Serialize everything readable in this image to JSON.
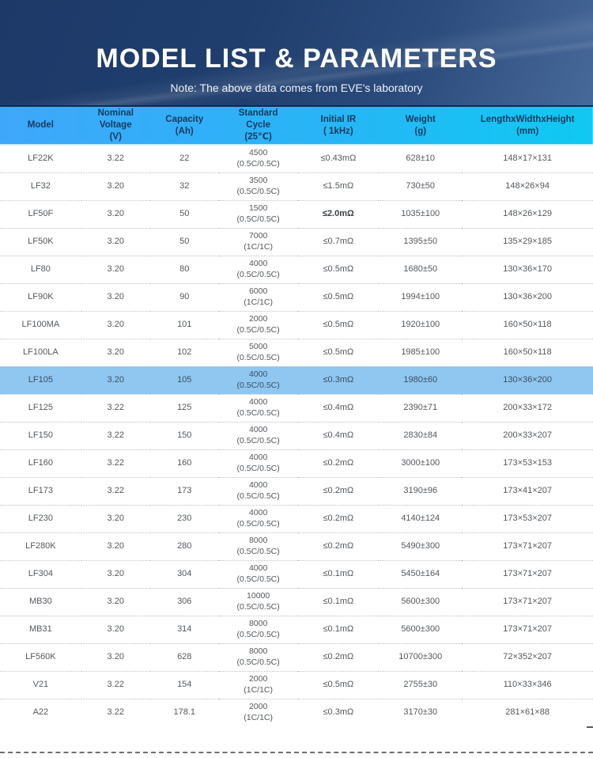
{
  "banner": {
    "title": "MODEL LIST & PARAMETERS",
    "note": "Note: The above data comes from EVE's laboratory"
  },
  "colors": {
    "banner_dark": "#1d3968",
    "banner_light": "#47699a",
    "header_gradient_start": "#3fa7fa",
    "header_gradient_end": "#0fc9f2",
    "header_text": "#173a5e",
    "body_text": "#54585c",
    "highlight_row": "#8fc7f0"
  },
  "table": {
    "headers": [
      "Model",
      "Nominal\nVoltage\n(V)",
      "Capacity\n(Ah)",
      "Standard\nCycle\n(25℃)",
      "Initial IR\n( 1kHz)",
      "Weight\n(g)",
      "LengthxWidthxHeight\n(mm)"
    ],
    "rows": [
      {
        "model": "LF22K",
        "voltage": "3.22",
        "capacity": "22",
        "cycle": "4500\n(0.5C/0.5C)",
        "initial_ir": "≤0.43mΩ",
        "weight": "628±10",
        "dimensions": "148×17×131"
      },
      {
        "model": "LF32",
        "voltage": "3.20",
        "capacity": "32",
        "cycle": "3500\n(0.5C/0.5C)",
        "initial_ir": "≤1.5mΩ",
        "weight": "730±50",
        "dimensions": "148×26×94"
      },
      {
        "model": "LF50F",
        "voltage": "3.20",
        "capacity": "50",
        "cycle": "1500\n(0.5C/0.5C)",
        "initial_ir": "≤2.0mΩ",
        "weight": "1035±100",
        "dimensions": "148×26×129",
        "ir_bold": true
      },
      {
        "model": "LF50K",
        "voltage": "3.20",
        "capacity": "50",
        "cycle": "7000\n(1C/1C)",
        "initial_ir": "≤0.7mΩ",
        "weight": "1395±50",
        "dimensions": "135×29×185"
      },
      {
        "model": "LF80",
        "voltage": "3.20",
        "capacity": "80",
        "cycle": "4000\n(0.5C/0.5C)",
        "initial_ir": "≤0.5mΩ",
        "weight": "1680±50",
        "dimensions": "130×36×170"
      },
      {
        "model": "LF90K",
        "voltage": "3.20",
        "capacity": "90",
        "cycle": "6000\n(1C/1C)",
        "initial_ir": "≤0.5mΩ",
        "weight": "1994±100",
        "dimensions": "130×36×200"
      },
      {
        "model": "LF100MA",
        "voltage": "3.20",
        "capacity": "101",
        "cycle": "2000\n(0.5C/0.5C)",
        "initial_ir": "≤0.5mΩ",
        "weight": "1920±100",
        "dimensions": "160×50×118"
      },
      {
        "model": "LF100LA",
        "voltage": "3.20",
        "capacity": "102",
        "cycle": "5000\n(0.5C/0.5C)",
        "initial_ir": "≤0.5mΩ",
        "weight": "1985±100",
        "dimensions": "160×50×118"
      },
      {
        "model": "LF105",
        "voltage": "3.20",
        "capacity": "105",
        "cycle": "4000\n(0.5C/0.5C)",
        "initial_ir": "≤0.3mΩ",
        "weight": "1980±60",
        "dimensions": "130×36×200",
        "highlight": true
      },
      {
        "model": "LF125",
        "voltage": "3.22",
        "capacity": "125",
        "cycle": "4000\n(0.5C/0.5C)",
        "initial_ir": "≤0.4mΩ",
        "weight": "2390±71",
        "dimensions": "200×33×172"
      },
      {
        "model": "LF150",
        "voltage": "3.22",
        "capacity": "150",
        "cycle": "4000\n(0.5C/0.5C)",
        "initial_ir": "≤0.4mΩ",
        "weight": "2830±84",
        "dimensions": "200×33×207"
      },
      {
        "model": "LF160",
        "voltage": "3.22",
        "capacity": "160",
        "cycle": "4000\n(0.5C/0.5C)",
        "initial_ir": "≤0.2mΩ",
        "weight": "3000±100",
        "dimensions": "173×53×153"
      },
      {
        "model": "LF173",
        "voltage": "3.22",
        "capacity": "173",
        "cycle": "4000\n(0.5C/0.5C)",
        "initial_ir": "≤0.2mΩ",
        "weight": "3190±96",
        "dimensions": "173×41×207"
      },
      {
        "model": "LF230",
        "voltage": "3.20",
        "capacity": "230",
        "cycle": "4000\n(0.5C/0.5C)",
        "initial_ir": "≤0.2mΩ",
        "weight": "4140±124",
        "dimensions": "173×53×207"
      },
      {
        "model": "LF280K",
        "voltage": "3.20",
        "capacity": "280",
        "cycle": "8000\n(0.5C/0.5C)",
        "initial_ir": "≤0.2mΩ",
        "weight": "5490±300",
        "dimensions": "173×71×207"
      },
      {
        "model": "LF304",
        "voltage": "3.20",
        "capacity": "304",
        "cycle": "4000\n(0.5C/0.5C)",
        "initial_ir": "≤0.1mΩ",
        "weight": "5450±164",
        "dimensions": "173×71×207"
      },
      {
        "model": "MB30",
        "voltage": "3.20",
        "capacity": "306",
        "cycle": "10000\n(0.5C/0.5C)",
        "initial_ir": "≤0.1mΩ",
        "weight": "5600±300",
        "dimensions": "173×71×207"
      },
      {
        "model": "MB31",
        "voltage": "3.20",
        "capacity": "314",
        "cycle": "8000\n(0.5C/0.5C)",
        "initial_ir": "≤0.1mΩ",
        "weight": "5600±300",
        "dimensions": "173×71×207"
      },
      {
        "model": "LF560K",
        "voltage": "3.20",
        "capacity": "628",
        "cycle": "8000\n(0.5C/0.5C)",
        "initial_ir": "≤0.2mΩ",
        "weight": "10700±300",
        "dimensions": "72×352×207"
      },
      {
        "model": "V21",
        "voltage": "3.22",
        "capacity": "154",
        "cycle": "2000\n(1C/1C)",
        "initial_ir": "≤0.5mΩ",
        "weight": "2755±30",
        "dimensions": "110×33×346"
      },
      {
        "model": "A22",
        "voltage": "3.22",
        "capacity": "178.1",
        "cycle": "2000\n(1C/1C)",
        "initial_ir": "≤0.3mΩ",
        "weight": "3170±30",
        "dimensions": "281×61×88"
      }
    ]
  }
}
